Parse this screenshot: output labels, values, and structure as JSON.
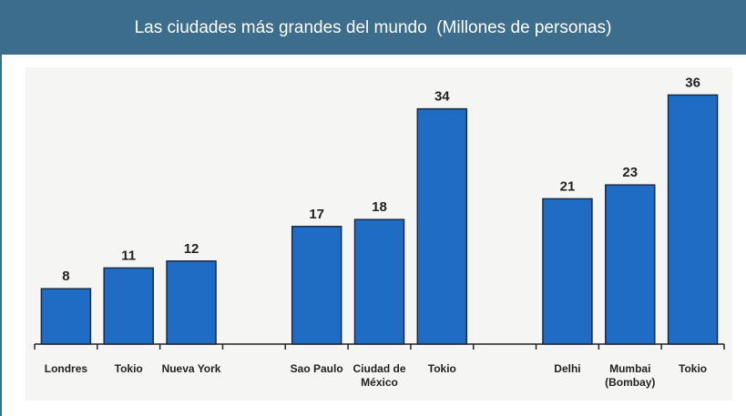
{
  "chart_data": {
    "type": "bar",
    "title": "Las ciudades más grandes del mundo  (Millones de personas)",
    "categories": [
      "Londres",
      "Tokio",
      "Nueva York",
      null,
      "Sao Paulo",
      "Ciudad de México",
      "Tokio",
      null,
      "Delhi",
      "Mumbai (Bombay)",
      "Tokio"
    ],
    "values": [
      8,
      11,
      12,
      null,
      17,
      18,
      34,
      null,
      21,
      23,
      36
    ],
    "color": "#1f6cc4"
  }
}
